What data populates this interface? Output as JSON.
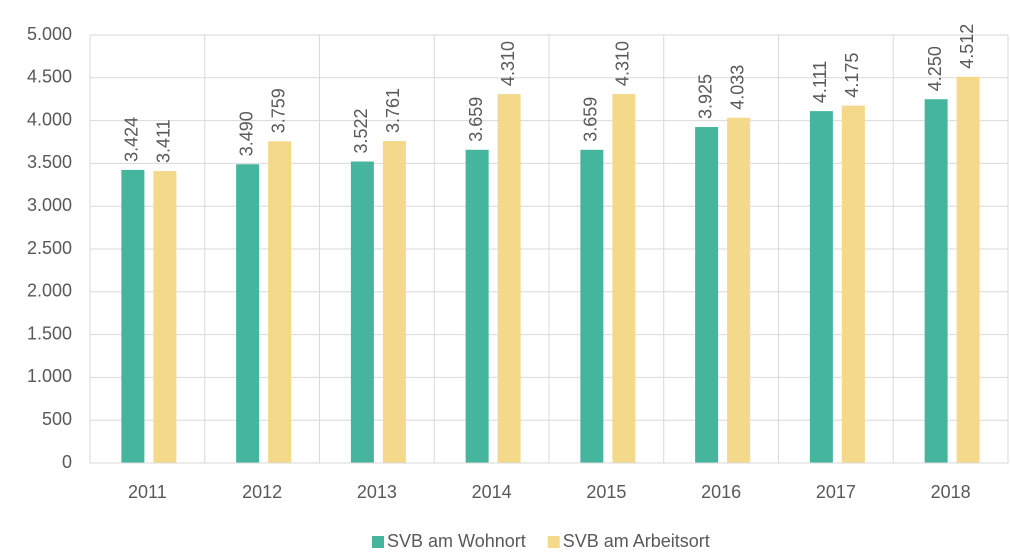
{
  "chart_data": {
    "type": "bar",
    "categories": [
      "2011",
      "2012",
      "2013",
      "2014",
      "2015",
      "2016",
      "2017",
      "2018"
    ],
    "series": [
      {
        "name": "SVB am Wohnort",
        "color": "#46b59e",
        "values": [
          3424,
          3490,
          3522,
          3659,
          3659,
          3925,
          4111,
          4250
        ],
        "value_labels": [
          "3.424",
          "3.490",
          "3.522",
          "3.659",
          "3.659",
          "3.925",
          "4.111",
          "4.250"
        ]
      },
      {
        "name": "SVB am Arbeitsort",
        "color": "#f5d98b",
        "values": [
          3411,
          3759,
          3761,
          4310,
          4310,
          4033,
          4175,
          4512
        ],
        "value_labels": [
          "3.411",
          "3.759",
          "3.761",
          "4.310",
          "4.310",
          "4.033",
          "4.175",
          "4.512"
        ]
      }
    ],
    "ylim": [
      0,
      5000
    ],
    "yticks": [
      0,
      500,
      {
        "value": 1000,
        "label": "1.000"
      },
      {
        "value": 1500,
        "label": "1.500"
      },
      {
        "value": 2000,
        "label": "2.000"
      },
      {
        "value": 2500,
        "label": "2.500"
      },
      {
        "value": 3000,
        "label": "3.000"
      },
      {
        "value": 3500,
        "label": "3.500"
      },
      {
        "value": 4000,
        "label": "4.000"
      },
      {
        "value": 4500,
        "label": "4.500"
      },
      {
        "value": 5000,
        "label": "5.000"
      }
    ],
    "grid": true,
    "legend": "bottom"
  }
}
